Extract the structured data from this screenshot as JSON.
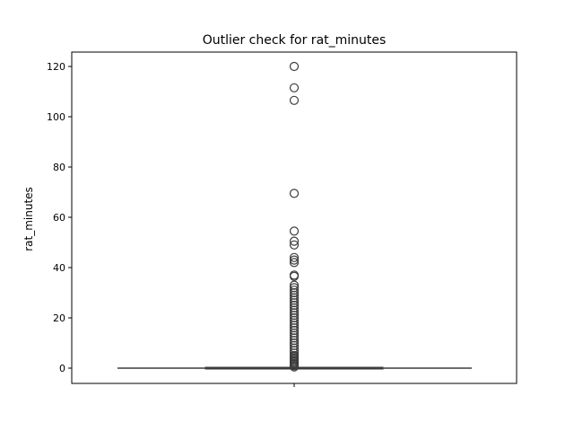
{
  "chart_data": {
    "type": "box",
    "title": "Outlier check for rat_minutes",
    "xlabel": "",
    "ylabel": "rat_minutes",
    "ylim": [
      -6,
      126
    ],
    "yticks": [
      0,
      20,
      40,
      60,
      80,
      100,
      120
    ],
    "grid": false,
    "series": [
      {
        "min": 0,
        "q1": 0,
        "median": 0,
        "q3": 0,
        "max": 0,
        "outliers": [
          120,
          111.5,
          106.5,
          69.5,
          54.5,
          50.5,
          49,
          44,
          43,
          42,
          37,
          36.5,
          33,
          32,
          31,
          30,
          29,
          28,
          27,
          26,
          25,
          24,
          23,
          22,
          21,
          20,
          19,
          18,
          17,
          16,
          15,
          14,
          13,
          12,
          11,
          10,
          9,
          8,
          7,
          6,
          5,
          4.5,
          4,
          3.5,
          3,
          2.5,
          2,
          1.5,
          1,
          0.5
        ]
      }
    ],
    "colors": {
      "box": "#1f77b4",
      "line": "#3d3d3d",
      "outlier": "#3d3d3d"
    }
  }
}
